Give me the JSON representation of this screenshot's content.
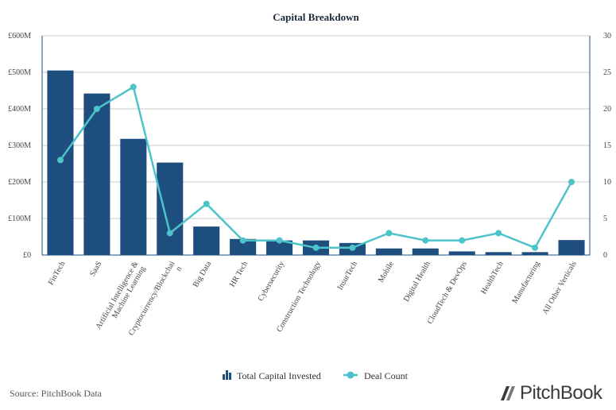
{
  "chart_data": {
    "type": "bar",
    "title": "Capital Breakdown",
    "categories": [
      "FinTech",
      "SaaS",
      "Artificial Intelligence & Machine Learning",
      "Cryptocurrency/Blockchain",
      "Big Data",
      "HR Tech",
      "Cybersecurity",
      "Construction Technology",
      "InsurTech",
      "Mobile",
      "Digital Health",
      "CloudTech & DevOps",
      "HealthTech",
      "Manufacturing",
      "All Other Verticals"
    ],
    "category_display": [
      [
        "FinTech"
      ],
      [
        "SaaS"
      ],
      [
        "Artificial Intelligence &",
        "Machine Learning"
      ],
      [
        "Cryptocurrency/Blockchai",
        "n"
      ],
      [
        "Big Data"
      ],
      [
        "HR Tech"
      ],
      [
        "Cybersecurity"
      ],
      [
        "Construction Technology"
      ],
      [
        "InsurTech"
      ],
      [
        "Mobile"
      ],
      [
        "Digital Health"
      ],
      [
        "CloudTech & DevOps"
      ],
      [
        "HealthTech"
      ],
      [
        "Manufacturing"
      ],
      [
        "All Other Verticals"
      ]
    ],
    "series": [
      {
        "name": "Total Capital Invested",
        "type": "bar",
        "axis": "left",
        "color": "#1d4e7e",
        "values": [
          505,
          442,
          318,
          253,
          78,
          44,
          40,
          40,
          33,
          18,
          18,
          10,
          8,
          8,
          41
        ]
      },
      {
        "name": "Deal Count",
        "type": "line",
        "axis": "right",
        "color": "#4cc4ca",
        "values": [
          13,
          20,
          23,
          3,
          7,
          2,
          2,
          1,
          1,
          3,
          2,
          2,
          3,
          1,
          10
        ]
      }
    ],
    "y_left": {
      "ylim": [
        0,
        600
      ],
      "ticks": [
        0,
        100,
        200,
        300,
        400,
        500,
        600
      ],
      "tick_labels": [
        "£0",
        "£100M",
        "£200M",
        "£300M",
        "£400M",
        "£500M",
        "£600M"
      ]
    },
    "y_right": {
      "ylim": [
        0,
        30
      ],
      "ticks": [
        0,
        5,
        10,
        15,
        20,
        25,
        30
      ],
      "tick_labels": [
        "0",
        "5",
        "10",
        "15",
        "20",
        "25",
        "30"
      ]
    },
    "grid": true,
    "legend": "bottom"
  },
  "source_text": "Source: PitchBook Data",
  "logo_text": "PitchBook"
}
